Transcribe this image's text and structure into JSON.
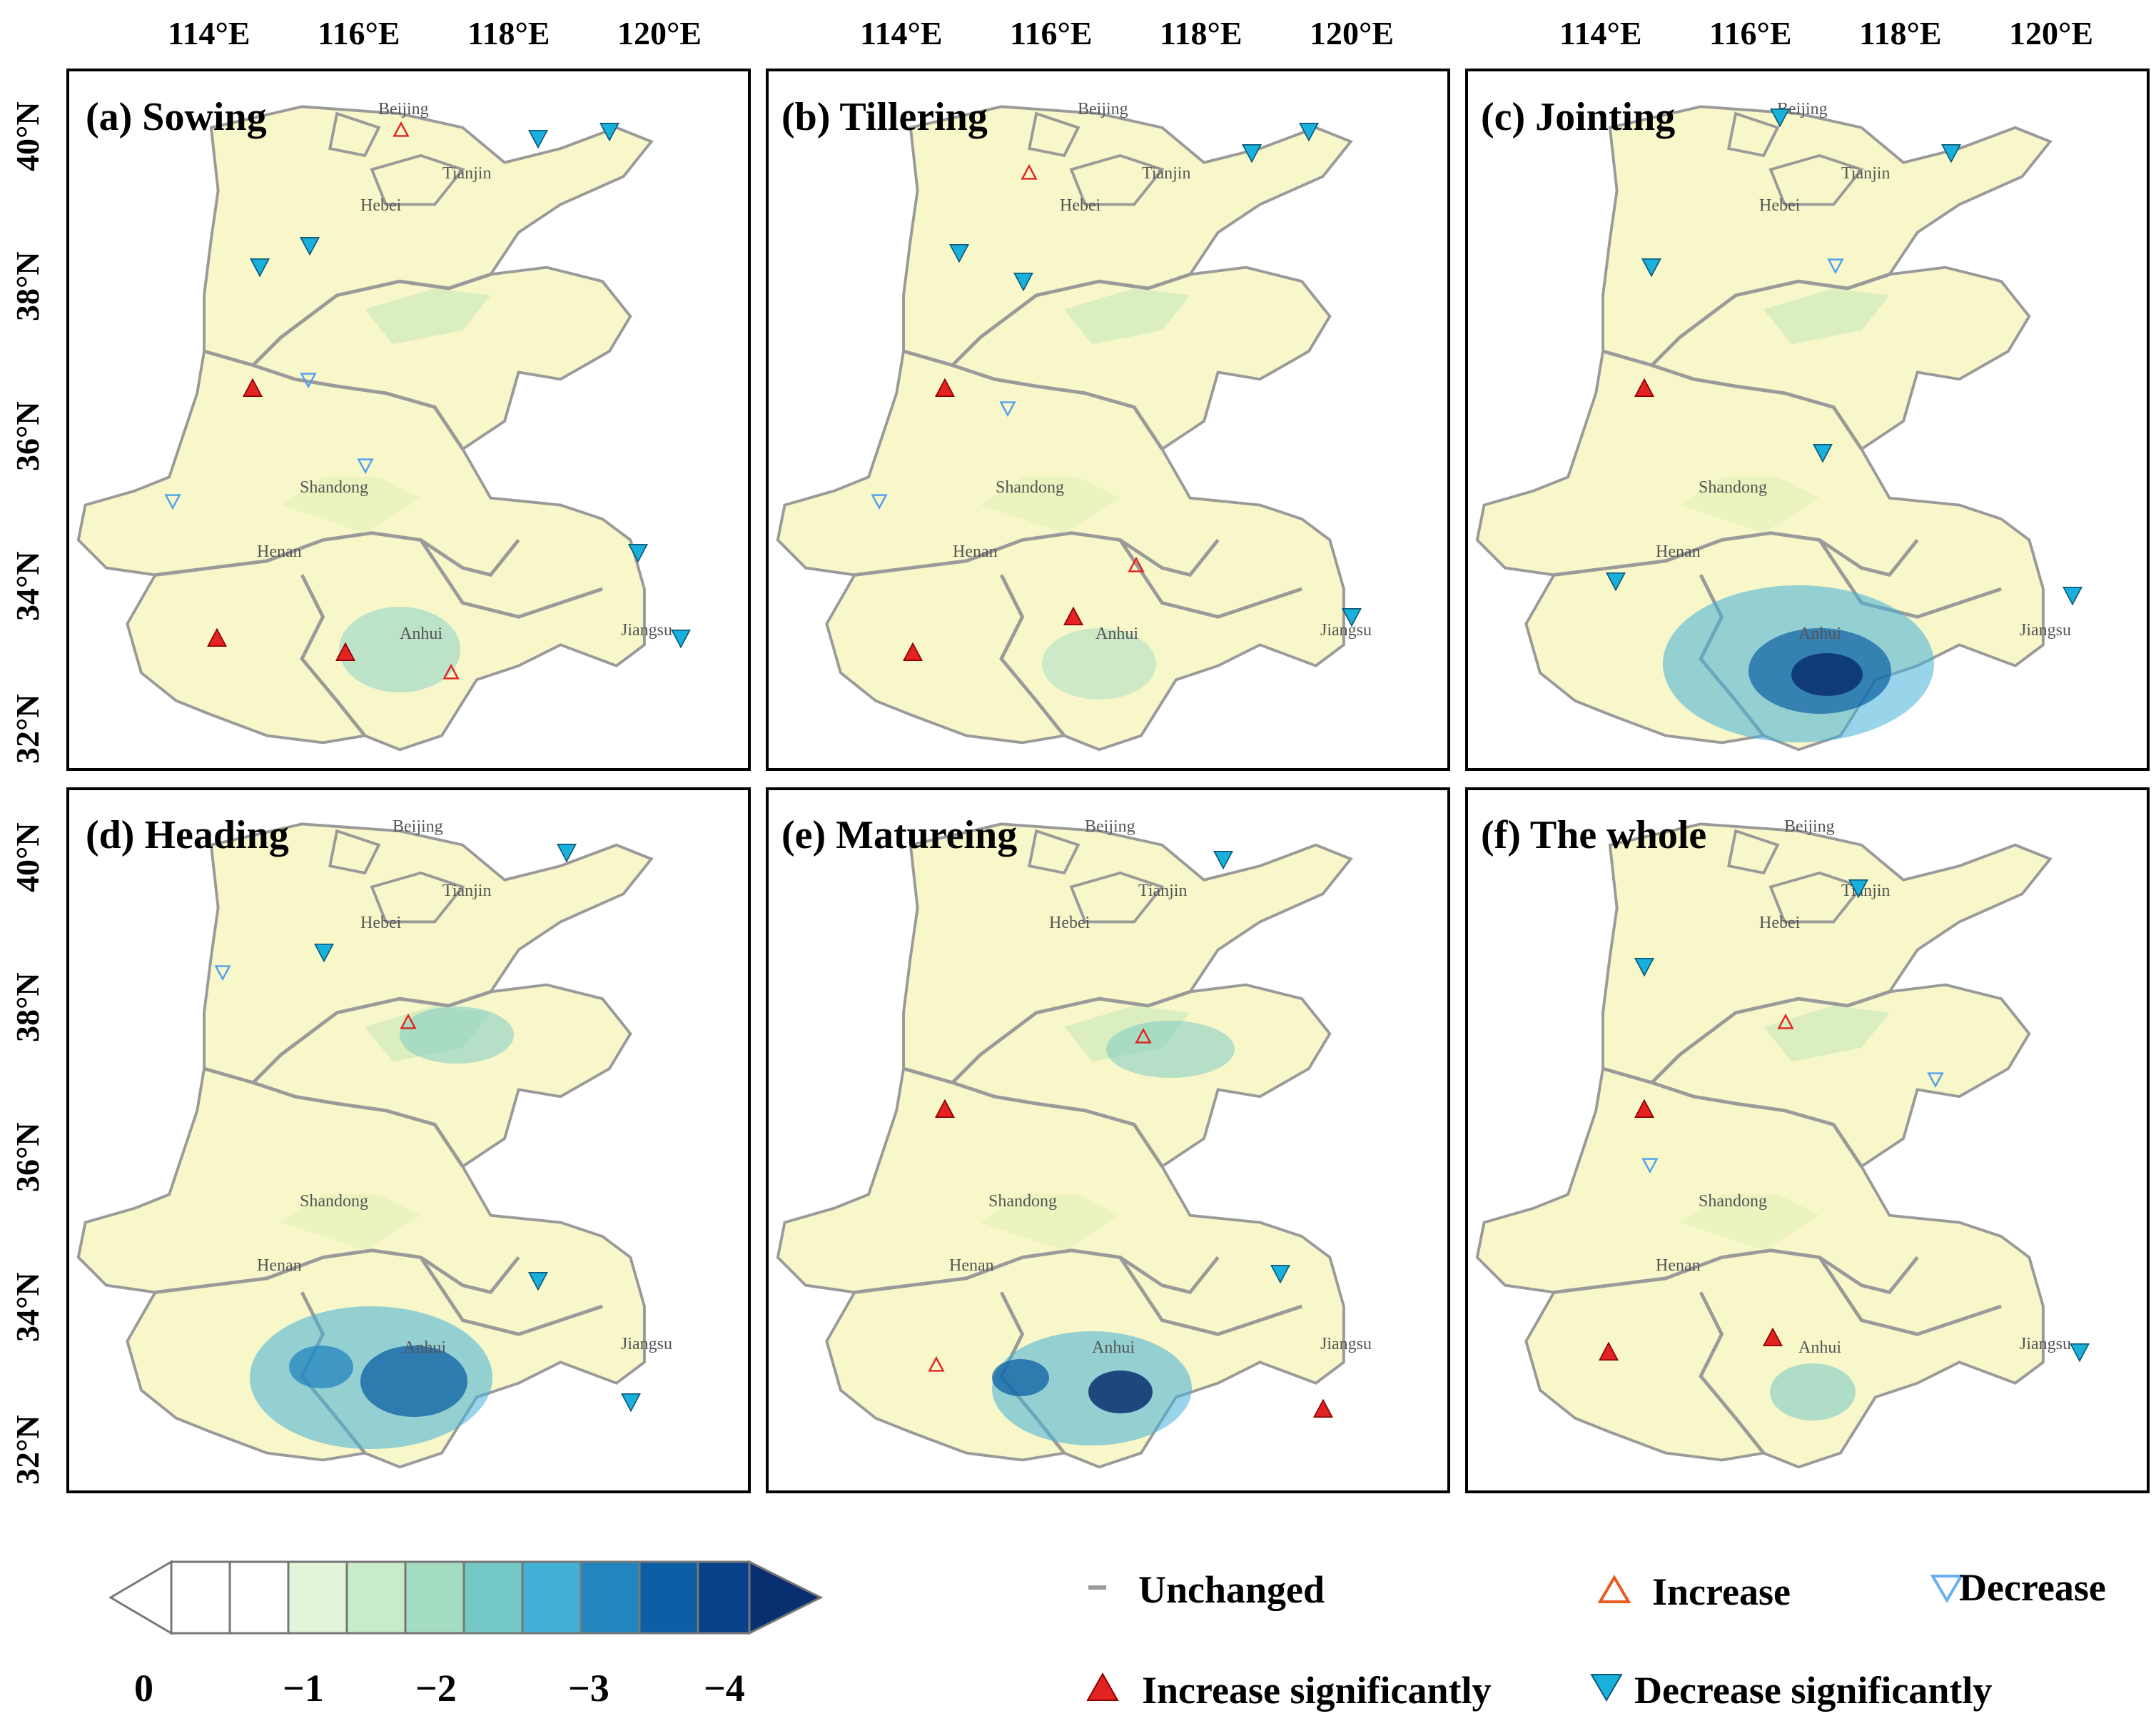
{
  "figure": {
    "lon_ticks": [
      "114°E",
      "116°E",
      "118°E",
      "120°E"
    ],
    "lat_ticks": [
      "40°N",
      "38°N",
      "36°N",
      "34°N",
      "32°N"
    ],
    "province_labels": [
      "Beijing",
      "Tianjin",
      "Hebei",
      "Shandong",
      "Henan",
      "Anhui",
      "Jiangsu"
    ]
  },
  "panels": [
    {
      "title": "(a) Sowing"
    },
    {
      "title": "(b) Tillering"
    },
    {
      "title": "(c) Jointing"
    },
    {
      "title": "(d) Heading"
    },
    {
      "title": "(e) Matureing"
    },
    {
      "title": "(f) The whole"
    }
  ],
  "legend": {
    "unchanged": "Unchanged",
    "increase": "Increase",
    "decrease": "Decrease",
    "increase_sig": "Increase significantly",
    "decrease_sig": "Decrease significantly"
  },
  "colorbar": {
    "labels": [
      "0",
      "−1",
      "−2",
      "−3",
      "−4"
    ],
    "colors": [
      "#ffffff",
      "#ffffff",
      "#ffffff",
      "#e2f5d8",
      "#c8ebc9",
      "#a4dcc2",
      "#74c8c6",
      "#43b0d8",
      "#2186bd",
      "#0c5fa4",
      "#08408a",
      "#0a2f70"
    ]
  },
  "colors": {
    "land": "#f7f7c9",
    "increase": "#e32222",
    "decrease": "#1ab0dc",
    "decrease_open": "#4f9ff0",
    "border": "#9a9a9a"
  }
}
